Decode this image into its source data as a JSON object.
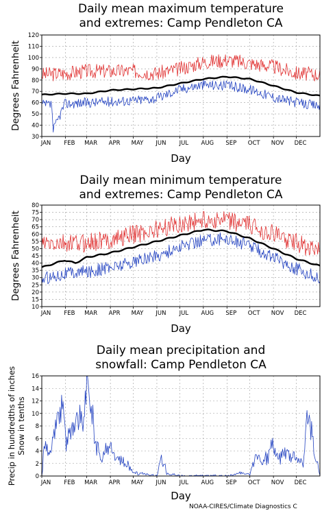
{
  "footer": {
    "credit": "NOAA-CIRES/Climate Diagnostics C"
  },
  "chart_data": [
    {
      "type": "line",
      "title": "Daily mean maximum temperature",
      "subtitle": "and extremes: Camp Pendleton CA",
      "xlabel": "Day",
      "ylabel": "Degrees Fahrenheit",
      "ylabel_lines": [
        "Degrees Fahrenheit"
      ],
      "ylim": [
        30,
        120
      ],
      "yticks": [
        30,
        40,
        50,
        60,
        70,
        80,
        90,
        100,
        110,
        120
      ],
      "xlim": [
        1,
        366
      ],
      "xticks": [
        "JAN",
        "FEB",
        "MAR",
        "APR",
        "MAY",
        "JUN",
        "JUL",
        "AUG",
        "SEP",
        "OCT",
        "NOV",
        "DEC"
      ],
      "grid": true,
      "series": [
        {
          "color": "#e03030",
          "width": 0.8,
          "x": [
            1,
            31,
            60,
            91,
            121,
            152,
            182,
            213,
            244,
            274,
            305,
            335,
            366
          ],
          "y": [
            85,
            86,
            88,
            88,
            88,
            86,
            90,
            96,
            98,
            95,
            92,
            86,
            85
          ]
        },
        {
          "color": "#000000",
          "width": 2.4,
          "x": [
            1,
            31,
            60,
            91,
            121,
            152,
            182,
            213,
            244,
            274,
            305,
            335,
            366
          ],
          "y": [
            67,
            68,
            68,
            71,
            72,
            73,
            77,
            81,
            83,
            81,
            75,
            69,
            66
          ]
        },
        {
          "color": "#2040c0",
          "width": 0.8,
          "x": [
            1,
            14,
            16,
            31,
            60,
            91,
            121,
            152,
            182,
            213,
            244,
            274,
            305,
            335,
            366
          ],
          "y": [
            58,
            58,
            35,
            59,
            60,
            61,
            62,
            64,
            72,
            76,
            75,
            72,
            65,
            60,
            57
          ]
        }
      ]
    },
    {
      "type": "line",
      "title": "Daily mean minimum temperature",
      "subtitle": "and extremes: Camp Pendleton CA",
      "xlabel": "Day",
      "ylabel": "Degrees Fahrenheit",
      "ylabel_lines": [
        "Degrees Fahrenheit"
      ],
      "ylim": [
        10,
        80
      ],
      "yticks": [
        10,
        15,
        20,
        25,
        30,
        35,
        40,
        45,
        50,
        55,
        60,
        65,
        70,
        75,
        80
      ],
      "xlim": [
        1,
        366
      ],
      "xticks": [
        "JAN",
        "FEB",
        "MAR",
        "APR",
        "MAY",
        "JUN",
        "JUL",
        "AUG",
        "SEP",
        "OCT",
        "NOV",
        "DEC"
      ],
      "grid": true,
      "series": [
        {
          "color": "#e03030",
          "width": 0.8,
          "x": [
            1,
            31,
            60,
            91,
            121,
            152,
            182,
            213,
            244,
            274,
            305,
            335,
            366
          ],
          "y": [
            53,
            53,
            54,
            56,
            60,
            63,
            67,
            70,
            69,
            66,
            60,
            54,
            48
          ]
        },
        {
          "color": "#000000",
          "width": 2.4,
          "x": [
            1,
            31,
            45,
            60,
            91,
            121,
            152,
            182,
            213,
            244,
            274,
            305,
            335,
            366
          ],
          "y": [
            37,
            42,
            40,
            44,
            47,
            51,
            55,
            59,
            63,
            62,
            57,
            50,
            43,
            38
          ]
        },
        {
          "color": "#2040c0",
          "width": 0.8,
          "x": [
            1,
            31,
            60,
            91,
            121,
            152,
            182,
            213,
            244,
            274,
            305,
            335,
            366
          ],
          "y": [
            29,
            33,
            34,
            37,
            41,
            45,
            51,
            56,
            57,
            52,
            44,
            36,
            29
          ]
        }
      ]
    },
    {
      "type": "line",
      "title": "Daily mean precipitation and",
      "subtitle": "snowfall: Camp Pendleton CA",
      "xlabel": "Day",
      "ylabel": "Precip in hundredths of inches Snow in tenths",
      "ylabel_lines": [
        "Precip in hundredths of inches",
        "Snow in tenths"
      ],
      "ylim": [
        0,
        16
      ],
      "yticks": [
        0,
        2,
        4,
        6,
        8,
        10,
        12,
        14,
        16
      ],
      "xlim": [
        1,
        366
      ],
      "xticks": [
        "JAN",
        "FEB",
        "MAR",
        "APR",
        "MAY",
        "JUN",
        "JUL",
        "AUG",
        "SEP",
        "OCT",
        "NOV",
        "DEC"
      ],
      "grid": true,
      "series": [
        {
          "color": "#2040c0",
          "width": 0.8,
          "x": [
            1,
            5,
            12,
            20,
            28,
            33,
            45,
            55,
            60,
            66,
            72,
            80,
            91,
            100,
            110,
            121,
            135,
            152,
            158,
            165,
            175,
            182,
            213,
            244,
            265,
            274,
            282,
            290,
            305,
            312,
            320,
            335,
            344,
            350,
            358,
            366
          ],
          "y": [
            0,
            5,
            3,
            8,
            13,
            5,
            10,
            8,
            15.5,
            11,
            5,
            3,
            5,
            3,
            2,
            0.5,
            0.3,
            0,
            3.5,
            0.3,
            0.2,
            0,
            0,
            0,
            0.5,
            0.2,
            3.5,
            2,
            5,
            3,
            4,
            3,
            2,
            11.5,
            4,
            0
          ]
        },
        {
          "color": "#e03030",
          "width": 1.0,
          "x": [
            1,
            366
          ],
          "y": [
            0,
            0
          ]
        }
      ]
    }
  ]
}
